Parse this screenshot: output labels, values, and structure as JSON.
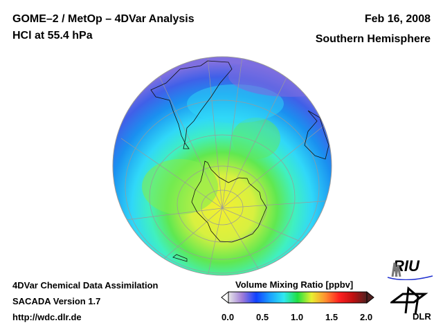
{
  "header": {
    "title_line1": "GOME–2 / MetOp – 4DVar Analysis",
    "title_line2": "HCl at 55.4 hPa",
    "date": "Feb 16, 2008",
    "region": "Southern Hemisphere"
  },
  "footer": {
    "line1": "4DVar Chemical Data Assimilation",
    "line2": "SACADA Version 1.7",
    "url": "http://wdc.dlr.de"
  },
  "colorbar": {
    "title": "Volume Mixing Ratio [ppbv]",
    "min": 0.0,
    "max": 2.0,
    "ticks": [
      "0.0",
      "0.5",
      "1.0",
      "1.5",
      "2.0"
    ],
    "colors": [
      "#e8e8e8",
      "#a07cd8",
      "#1040ff",
      "#1aa0ff",
      "#30e8f0",
      "#20e040",
      "#e8f030",
      "#ff9030",
      "#ff2020",
      "#c01010",
      "#502020"
    ]
  },
  "logos": {
    "riu": "RIU",
    "dlr": "DLR"
  }
}
